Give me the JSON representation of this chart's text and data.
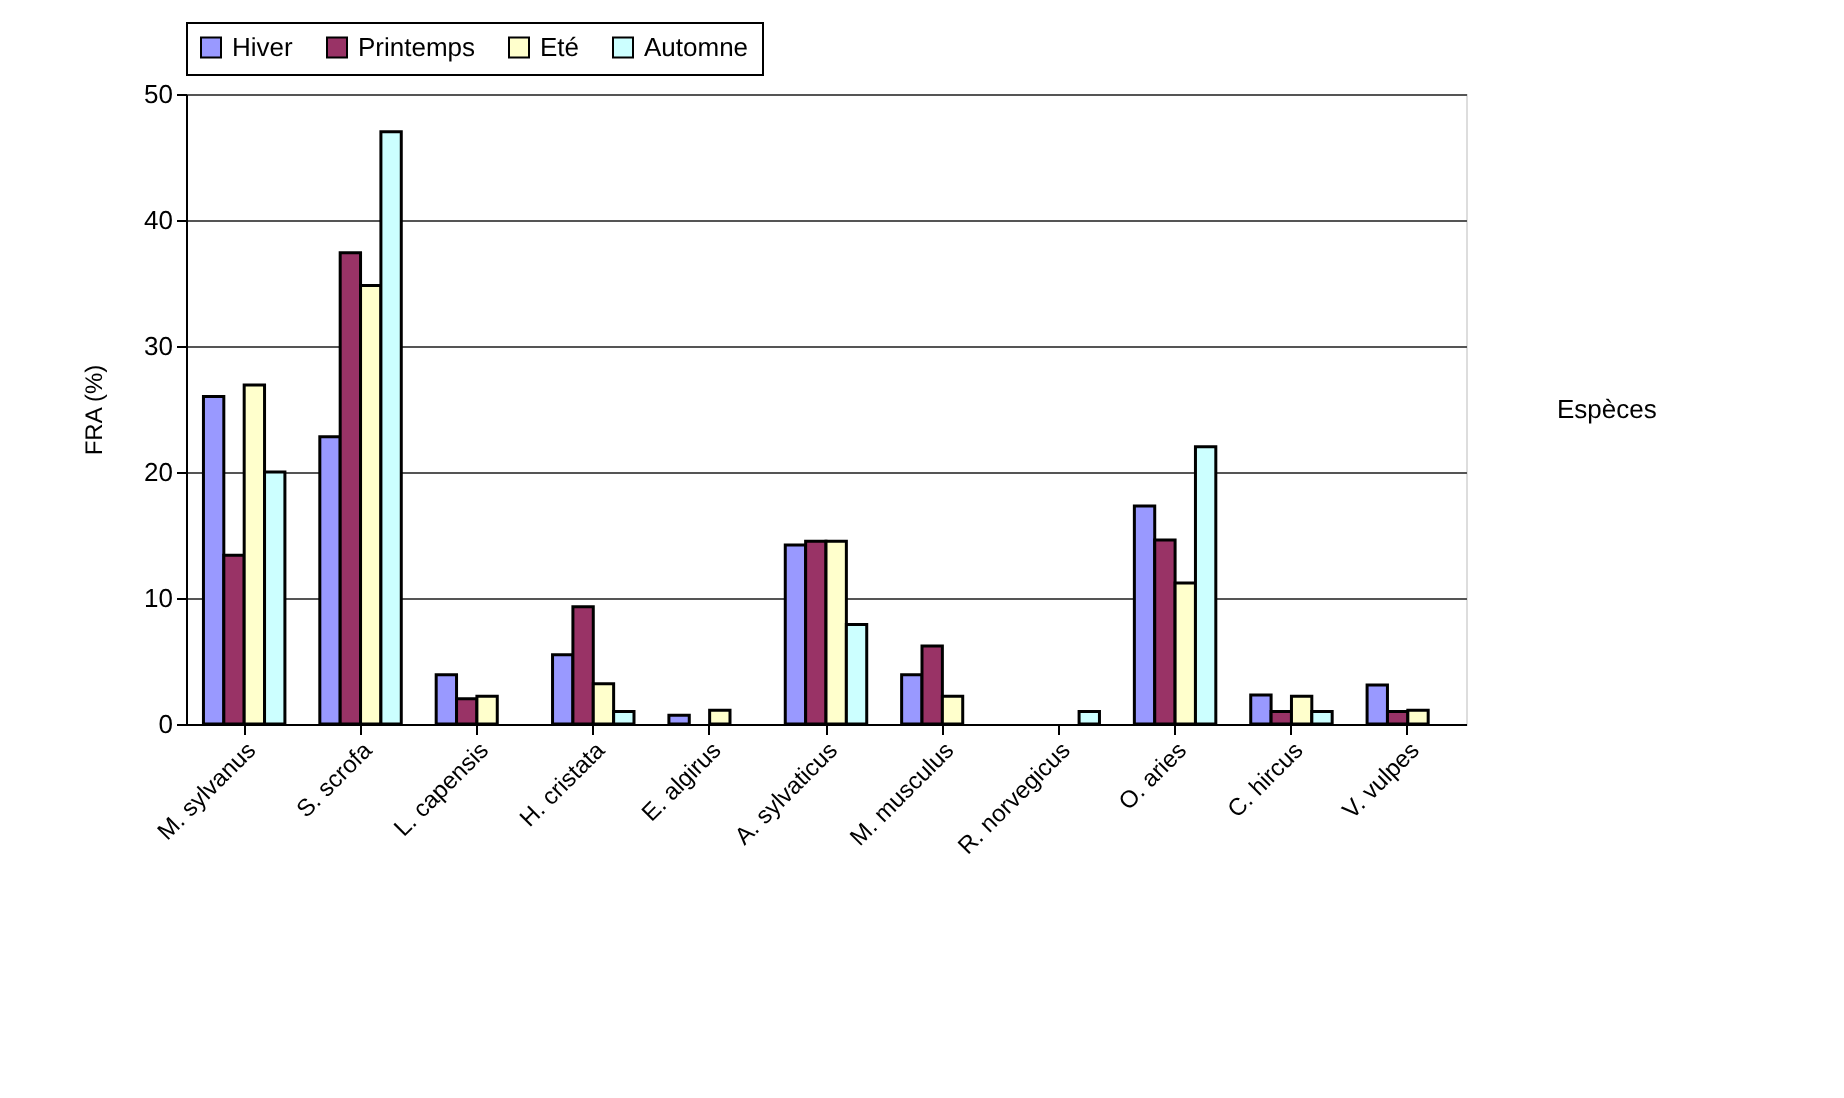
{
  "chart_data": {
    "type": "bar",
    "xlabel": "Espèces",
    "ylabel": "FRA (%)",
    "categories": [
      "M. sylvanus",
      "S. scrofa",
      "L. capensis",
      "H. cristata",
      "E. algirus",
      "A. sylvaticus",
      "M. musculus",
      "R. norvegicus",
      "O. aries",
      "C. hircus",
      "V. vulpes"
    ],
    "series": [
      {
        "name": "Hiver",
        "color": "#9999ff",
        "values": [
          26.0,
          22.8,
          3.9,
          5.5,
          0.7,
          14.2,
          3.9,
          null,
          17.3,
          2.3,
          3.1
        ]
      },
      {
        "name": "Printemps",
        "color": "#993366",
        "values": [
          13.4,
          37.4,
          2.0,
          9.3,
          null,
          14.5,
          6.2,
          null,
          14.6,
          1.0,
          1.0
        ]
      },
      {
        "name": "Eté",
        "color": "#ffffcc",
        "values": [
          26.9,
          34.8,
          2.2,
          3.2,
          1.1,
          14.5,
          2.2,
          null,
          11.2,
          2.2,
          1.1
        ]
      },
      {
        "name": "Automne",
        "color": "#ccffff",
        "values": [
          20.0,
          47.0,
          null,
          1.0,
          null,
          7.9,
          null,
          1.0,
          22.0,
          1.0,
          null
        ]
      }
    ],
    "ylim": [
      0,
      50
    ],
    "yticks": [
      0,
      10,
      20,
      30,
      40,
      50
    ],
    "grid": "y",
    "legend": "top"
  }
}
